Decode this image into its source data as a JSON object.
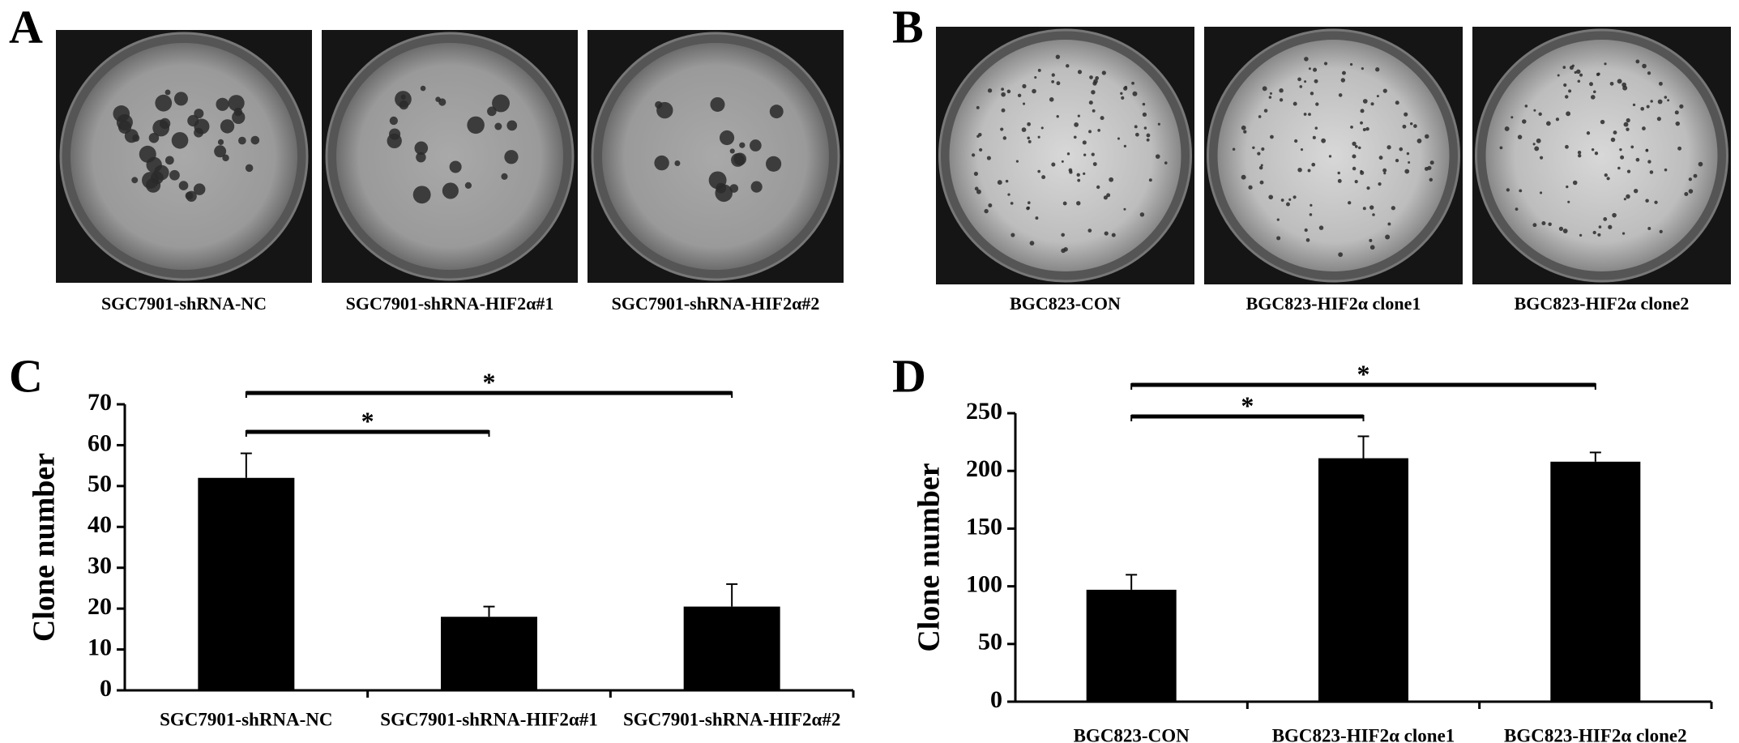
{
  "photo_panels": [
    {
      "panel_label": "A",
      "captions": [
        "SGC7901-shRNA-NC",
        "SGC7901-shRNA-HIF2α#1",
        "SGC7901-shRNA-HIF2α#2"
      ]
    },
    {
      "panel_label": "B",
      "captions": [
        "BGC823-CON",
        "BGC823-HIF2α clone1",
        "BGC823-HIF2α clone2"
      ]
    }
  ],
  "chart_data": [
    {
      "type": "bar",
      "panel_label": "C",
      "y_label": "Clone number",
      "categories": [
        "SGC7901-shRNA-NC",
        "SGC7901-shRNA-HIF2α#1",
        "SGC7901-shRNA-HIF2α#2"
      ],
      "values": [
        52,
        18,
        20.5
      ],
      "errors": [
        6,
        2.5,
        5.5
      ],
      "color": "#000000",
      "ylim": [
        0,
        70
      ],
      "yticks": [
        0,
        10,
        20,
        30,
        40,
        50,
        60,
        70
      ],
      "annotations": [
        {
          "text": "*",
          "between": [
            "SGC7901-shRNA-NC",
            "SGC7901-shRNA-HIF2α#1"
          ]
        },
        {
          "text": "*",
          "between": [
            "SGC7901-shRNA-NC",
            "SGC7901-shRNA-HIF2α#2"
          ]
        }
      ]
    },
    {
      "type": "bar",
      "panel_label": "D",
      "y_label": "Clone number",
      "categories": [
        "BGC823-CON",
        "BGC823-HIF2α clone1",
        "BGC823-HIF2α clone2"
      ],
      "values": [
        97,
        211,
        208
      ],
      "errors": [
        13,
        19,
        8
      ],
      "color": "#000000",
      "ylim": [
        0,
        250
      ],
      "yticks": [
        0,
        50,
        100,
        150,
        200,
        250
      ],
      "annotations": [
        {
          "text": "*",
          "between": [
            "BGC823-CON",
            "BGC823-HIF2α clone1"
          ]
        },
        {
          "text": "*",
          "between": [
            "BGC823-CON",
            "BGC823-HIF2α clone2"
          ]
        }
      ]
    }
  ]
}
